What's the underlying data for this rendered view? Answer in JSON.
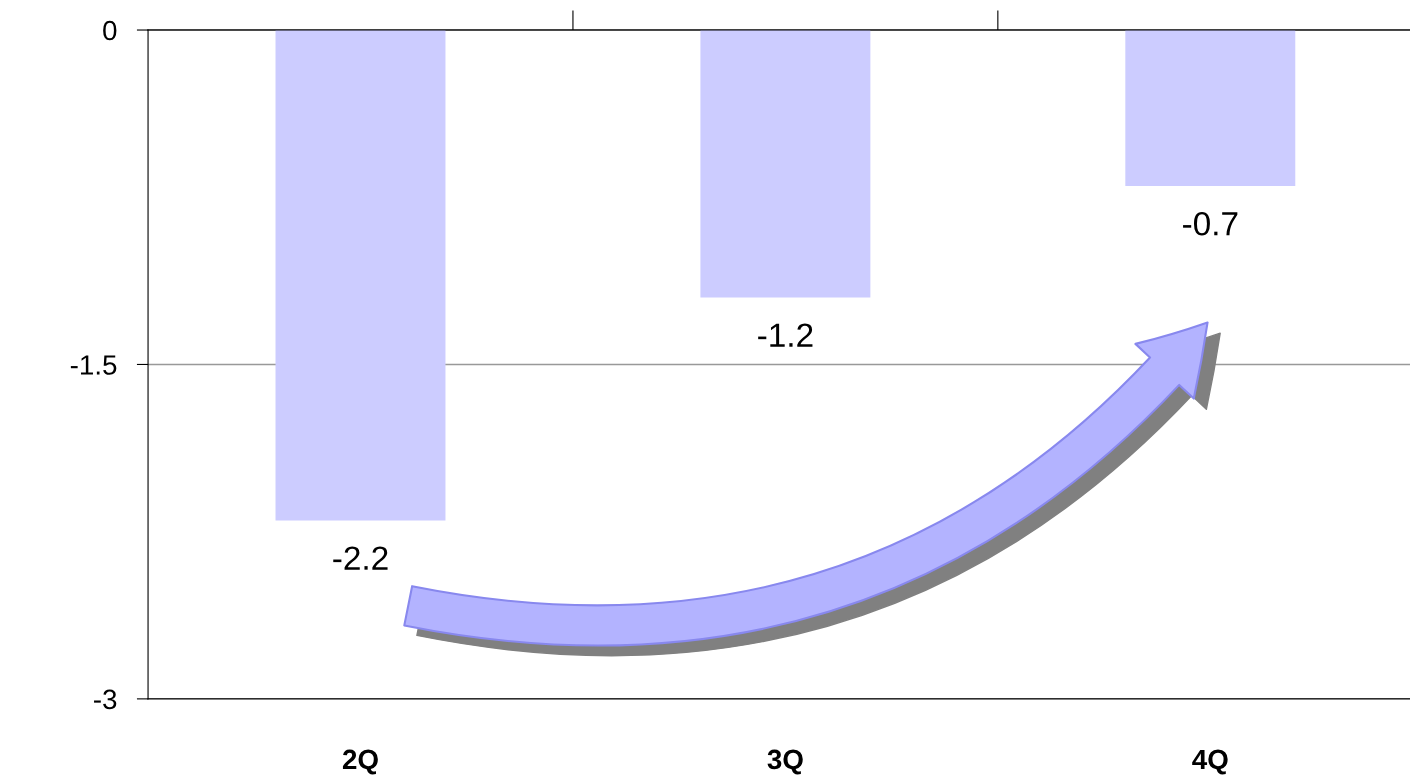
{
  "chart_data": {
    "type": "bar",
    "categories": [
      "2Q",
      "3Q",
      "4Q"
    ],
    "values": [
      -2.2,
      -1.2,
      -0.7
    ],
    "color": "#ccccff",
    "ylim": [
      -3,
      0
    ],
    "yticks": [
      0,
      -1.5,
      -3
    ],
    "grid": "y",
    "data_labels": true
  }
}
